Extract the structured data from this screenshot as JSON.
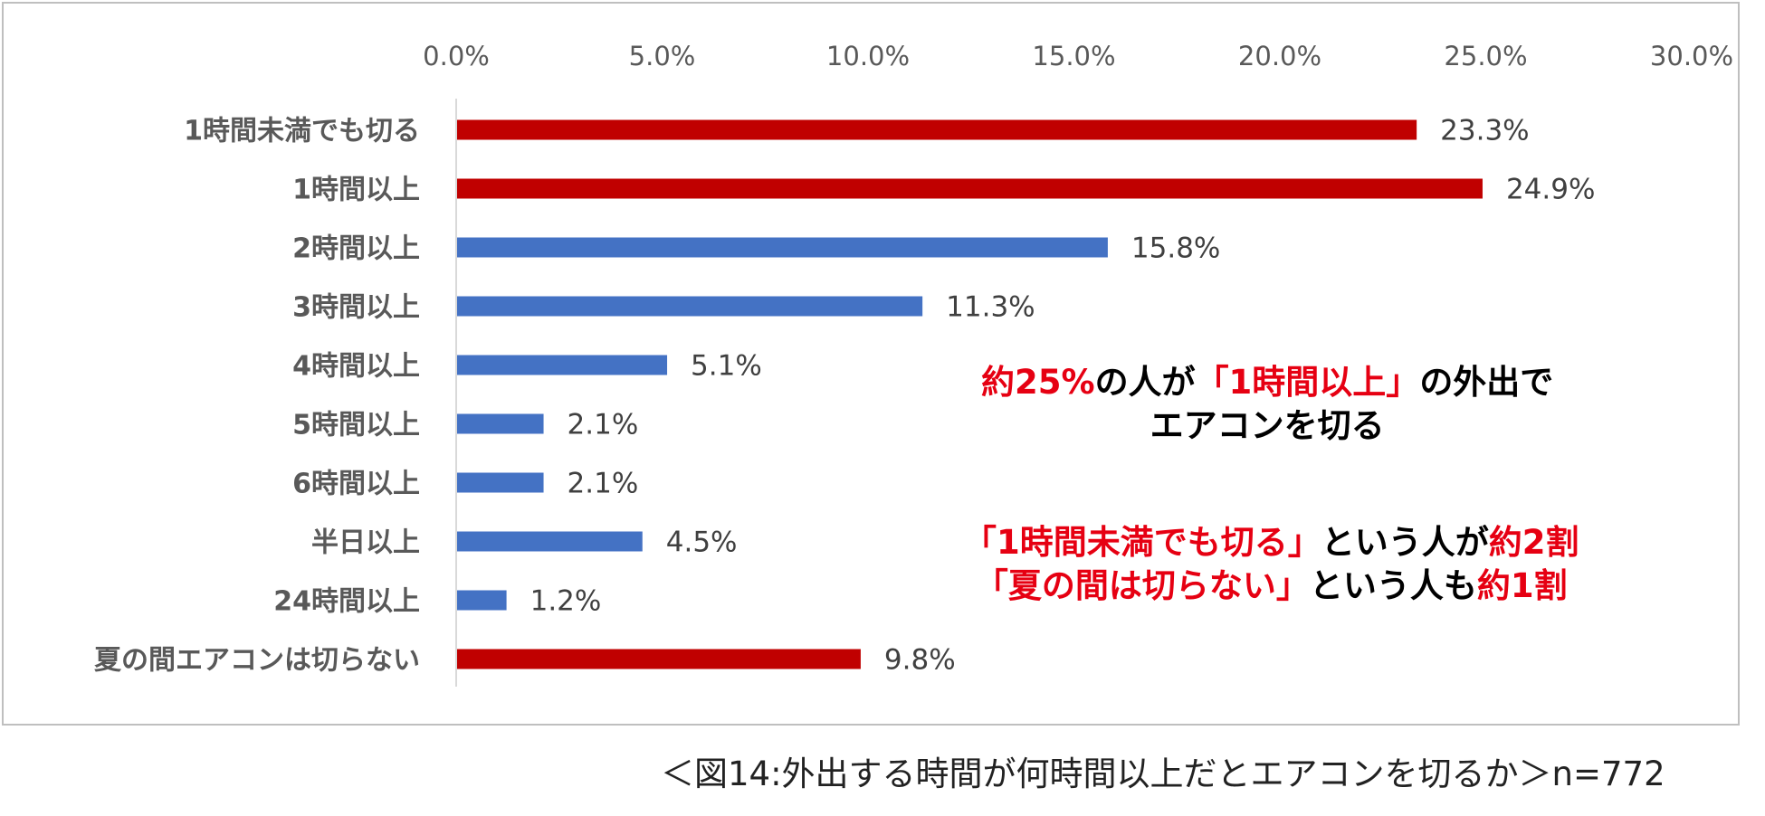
{
  "chart_data": {
    "type": "bar",
    "orientation": "horizontal",
    "categories": [
      "1時間未満でも切る",
      "1時間以上",
      "2時間以上",
      "3時間以上",
      "4時間以上",
      "5時間以上",
      "6時間以上",
      "半日以上",
      "24時間以上",
      "夏の間エアコンは切らない"
    ],
    "values": [
      23.3,
      24.9,
      15.8,
      11.3,
      5.1,
      2.1,
      2.1,
      4.5,
      1.2,
      9.8
    ],
    "value_labels": [
      "23.3%",
      "24.9%",
      "15.8%",
      "11.3%",
      "5.1%",
      "2.1%",
      "2.1%",
      "4.5%",
      "1.2%",
      "9.8%"
    ],
    "bar_colors": [
      "#c00000",
      "#c00000",
      "#4472c4",
      "#4472c4",
      "#4472c4",
      "#4472c4",
      "#4472c4",
      "#4472c4",
      "#4472c4",
      "#c00000"
    ],
    "xlim": [
      0,
      30
    ],
    "xticks": [
      "0.0%",
      "5.0%",
      "10.0%",
      "15.0%",
      "20.0%",
      "25.0%",
      "30.0%"
    ],
    "axis_position": "top",
    "grid": false,
    "legend": "none"
  },
  "annotations": {
    "a1_l1_p1": "約25%",
    "a1_l1_p2": "の人が",
    "a1_l1_p3": "「1時間以上」",
    "a1_l1_p4": "の外出で",
    "a1_l2": "エアコンを切る",
    "a2_l1_p1": "「1時間未満でも切る」",
    "a2_l1_p2": "という人が",
    "a2_l1_p3": "約2割",
    "a2_l2_p1": "「夏の間は切らない」",
    "a2_l2_p2": "という人も",
    "a2_l2_p3": "約1割"
  },
  "caption": "＜図14:外出する時間が何時間以上だとエアコンを切るか＞n=772",
  "colors": {
    "highlight": "#c00000",
    "base": "#4472c4",
    "annotation_red": "#e60012"
  }
}
